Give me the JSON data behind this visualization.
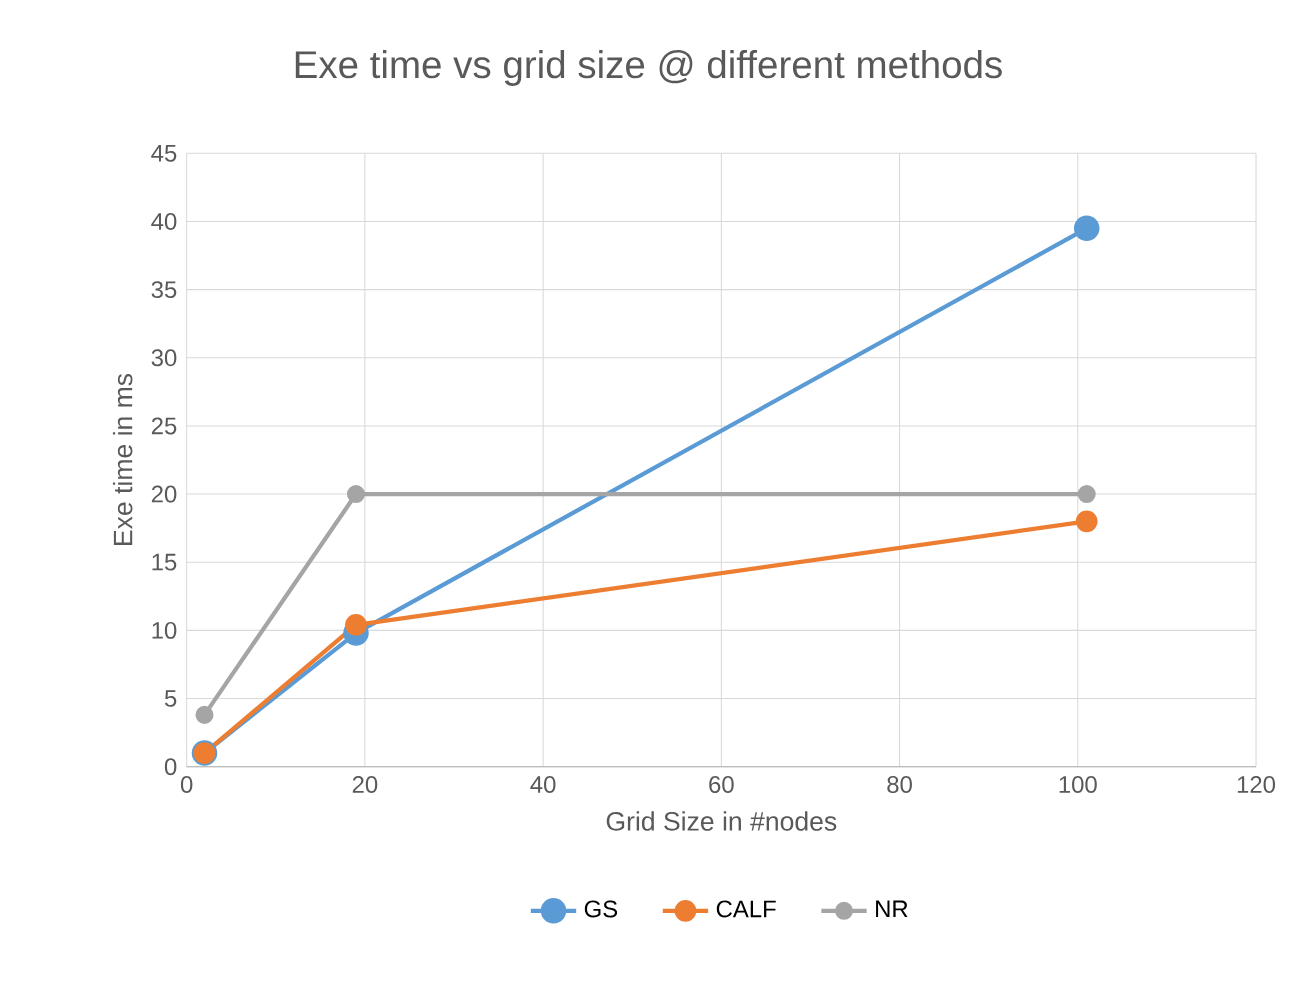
{
  "chart_data": {
    "type": "line",
    "title": "Exe time vs grid size @ different methods",
    "xlabel": "Grid Size in #nodes",
    "ylabel": "Exe time in ms",
    "series": [
      {
        "name": "GS",
        "color": "#5b9bd5",
        "x": [
          2,
          19,
          101
        ],
        "values": [
          1,
          9.8,
          39.5
        ]
      },
      {
        "name": "CALF",
        "color": "#ed7d31",
        "x": [
          2,
          19,
          101
        ],
        "values": [
          1,
          10.4,
          18
        ]
      },
      {
        "name": "NR",
        "color": "#a5a5a5",
        "x": [
          2,
          19,
          101
        ],
        "values": [
          3.8,
          20,
          20
        ]
      }
    ],
    "xlim": [
      0,
      120
    ],
    "xticks": [
      0,
      20,
      40,
      60,
      80,
      100,
      120
    ],
    "ylim": [
      0,
      45
    ],
    "yticks": [
      0,
      5,
      10,
      15,
      20,
      25,
      30,
      35,
      40,
      45
    ],
    "grid": true,
    "legend": "bottom",
    "marker": "circle",
    "line_style": "solid"
  }
}
